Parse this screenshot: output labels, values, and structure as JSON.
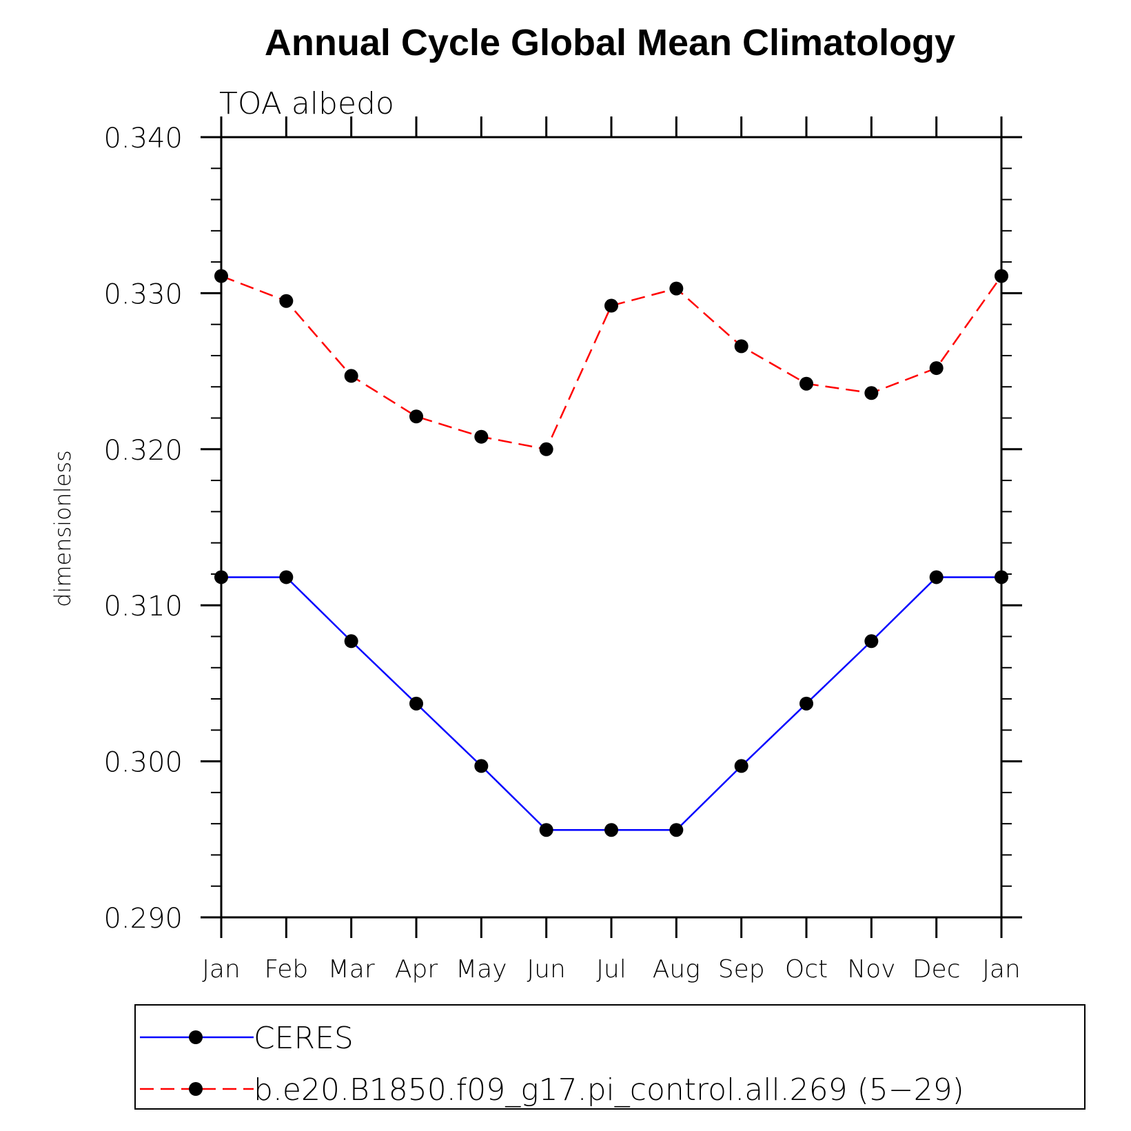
{
  "chart_data": {
    "type": "line",
    "title": "Annual Cycle Global Mean Climatology",
    "subtitle": "TOA albedo",
    "ylabel": "dimensionless",
    "xlabel": "",
    "categories": [
      "Jan",
      "Feb",
      "Mar",
      "Apr",
      "May",
      "Jun",
      "Jul",
      "Aug",
      "Sep",
      "Oct",
      "Nov",
      "Dec",
      "Jan"
    ],
    "ylim": [
      0.29,
      0.34
    ],
    "yticks": [
      "0.290",
      "0.300",
      "0.310",
      "0.320",
      "0.330",
      "0.340"
    ],
    "grid": false,
    "legend_position": "bottom",
    "series": [
      {
        "name": "CERES",
        "color": "#0000ff",
        "dash": "solid",
        "marker": "filled-circle",
        "values": [
          0.3118,
          0.3118,
          0.3077,
          0.3037,
          0.2997,
          0.2956,
          0.2956,
          0.2956,
          0.2997,
          0.3037,
          0.3077,
          0.3118,
          0.3118
        ]
      },
      {
        "name": "b.e20.B1850.f09_g17.pi_control.all.269 (5−29)",
        "color": "#ff0000",
        "dash": "dashed",
        "marker": "filled-circle",
        "values": [
          0.3311,
          0.3295,
          0.3247,
          0.3221,
          0.3208,
          0.32,
          0.3292,
          0.3303,
          0.3266,
          0.3242,
          0.3236,
          0.3252,
          0.3311
        ]
      }
    ]
  }
}
